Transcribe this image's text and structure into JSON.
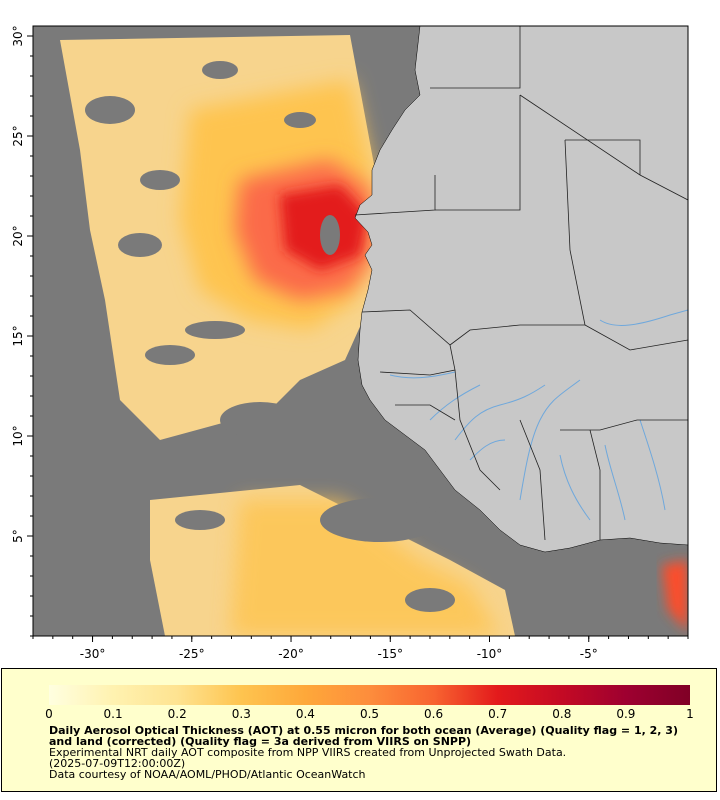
{
  "map": {
    "lon_min": -33,
    "lon_max": 0,
    "lat_min": 0,
    "lat_max": 30.5,
    "x_ticks": [
      {
        "value": -30,
        "label": "-30°"
      },
      {
        "value": -25,
        "label": "-25°"
      },
      {
        "value": -20,
        "label": "-20°"
      },
      {
        "value": -15,
        "label": "-15°"
      },
      {
        "value": -10,
        "label": "-10°"
      },
      {
        "value": -5,
        "label": "-5°"
      }
    ],
    "y_ticks": [
      {
        "value": 30,
        "label": "30°"
      },
      {
        "value": 25,
        "label": "25°"
      },
      {
        "value": 20,
        "label": "20°"
      },
      {
        "value": 15,
        "label": "15°"
      },
      {
        "value": 10,
        "label": "10°"
      },
      {
        "value": 5,
        "label": "5°"
      }
    ],
    "colors": {
      "no_data": "#7a7a7a",
      "land": "#c8c8c8",
      "borders": "#222222",
      "rivers": "#6fa8dc"
    }
  },
  "colorbar": {
    "min": 0,
    "max": 1,
    "ticks": [
      "0",
      "0.1",
      "0.2",
      "0.3",
      "0.4",
      "0.5",
      "0.6",
      "0.7",
      "0.8",
      "0.9",
      "1"
    ],
    "stops": [
      "#ffffe0",
      "#fff2b0",
      "#fee391",
      "#fec44f",
      "#fea83a",
      "#fd8d3c",
      "#f86430",
      "#e31a1c",
      "#c40a24",
      "#9e0030",
      "#800026"
    ]
  },
  "caption": {
    "title": "Daily Aerosol Optical Thickness (AOT) at 0.55 micron for both ocean (Average) (Quality flag = 1, 2, 3) and land (corrected) (Quality flag = 3a derived from VIIRS on SNPP)",
    "line1": "Experimental NRT daily AOT composite from NPP VIIRS created from Unprojected Swath Data.",
    "line2": "(2025-07-09T12:00:00Z)",
    "line3": "Data courtesy of NOAA/AOML/PHOD/Atlantic OceanWatch"
  }
}
